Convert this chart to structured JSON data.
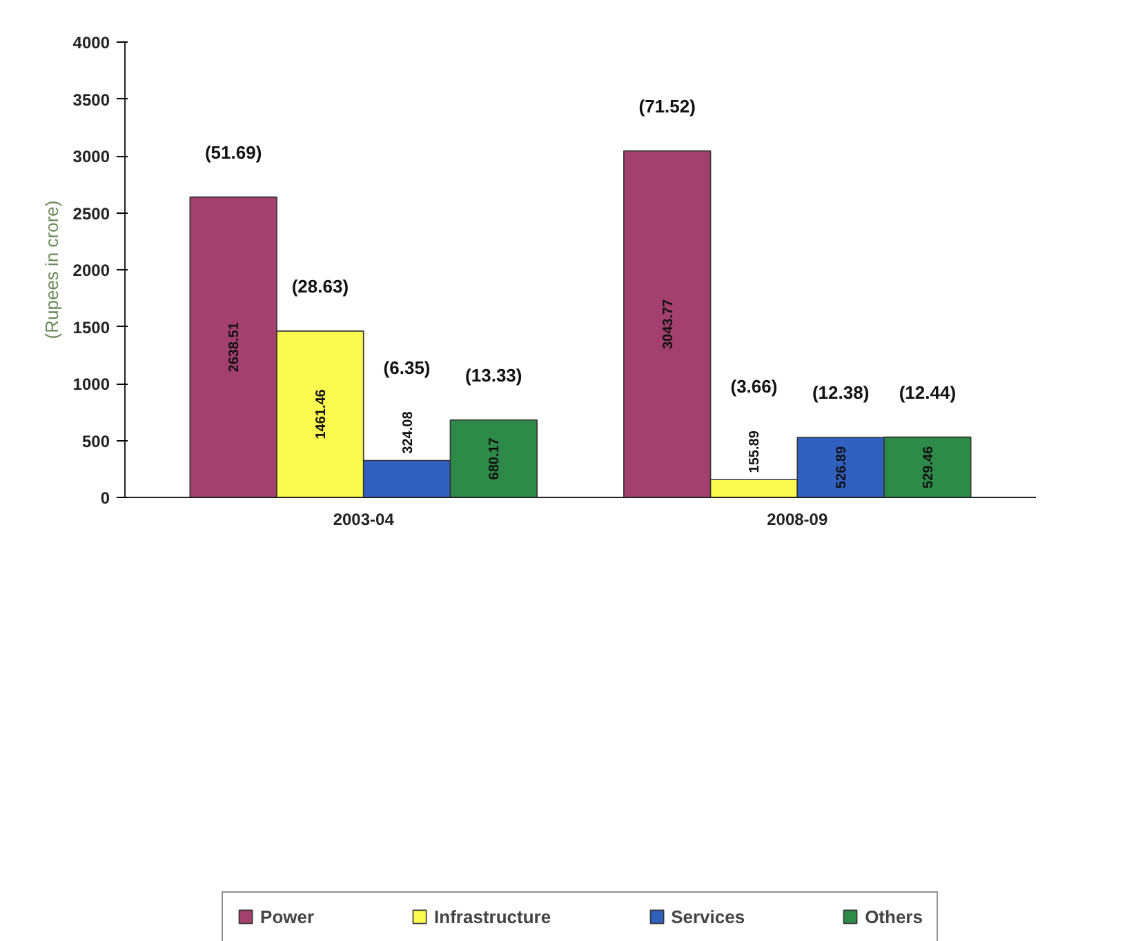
{
  "chart_data": {
    "type": "bar",
    "ylabel": "(Rupees in crore)",
    "categories": [
      "2003-04",
      "2008-09"
    ],
    "series": [
      {
        "name": "Power",
        "color": "#a3406e",
        "values": [
          2638.51,
          3043.77
        ]
      },
      {
        "name": "Infrastructure",
        "color": "#fafa50",
        "values": [
          1461.46,
          155.89
        ]
      },
      {
        "name": "Services",
        "color": "#3060c0",
        "values": [
          324.08,
          526.89
        ]
      },
      {
        "name": "Others",
        "color": "#2e8a48",
        "values": [
          680.17,
          529.46
        ]
      }
    ],
    "ylim": [
      0,
      4000
    ],
    "yticks": [
      0,
      500,
      1000,
      1500,
      2000,
      2500,
      3000,
      3500,
      4000
    ],
    "data_labels": true,
    "grid": false,
    "legend": "bottom",
    "annotations": [
      "(51.69)",
      "(28.63)",
      "(6.35)",
      "(13.33)",
      "(71.52)",
      "(3.66)",
      "(12.38)",
      "(12.44)"
    ]
  }
}
